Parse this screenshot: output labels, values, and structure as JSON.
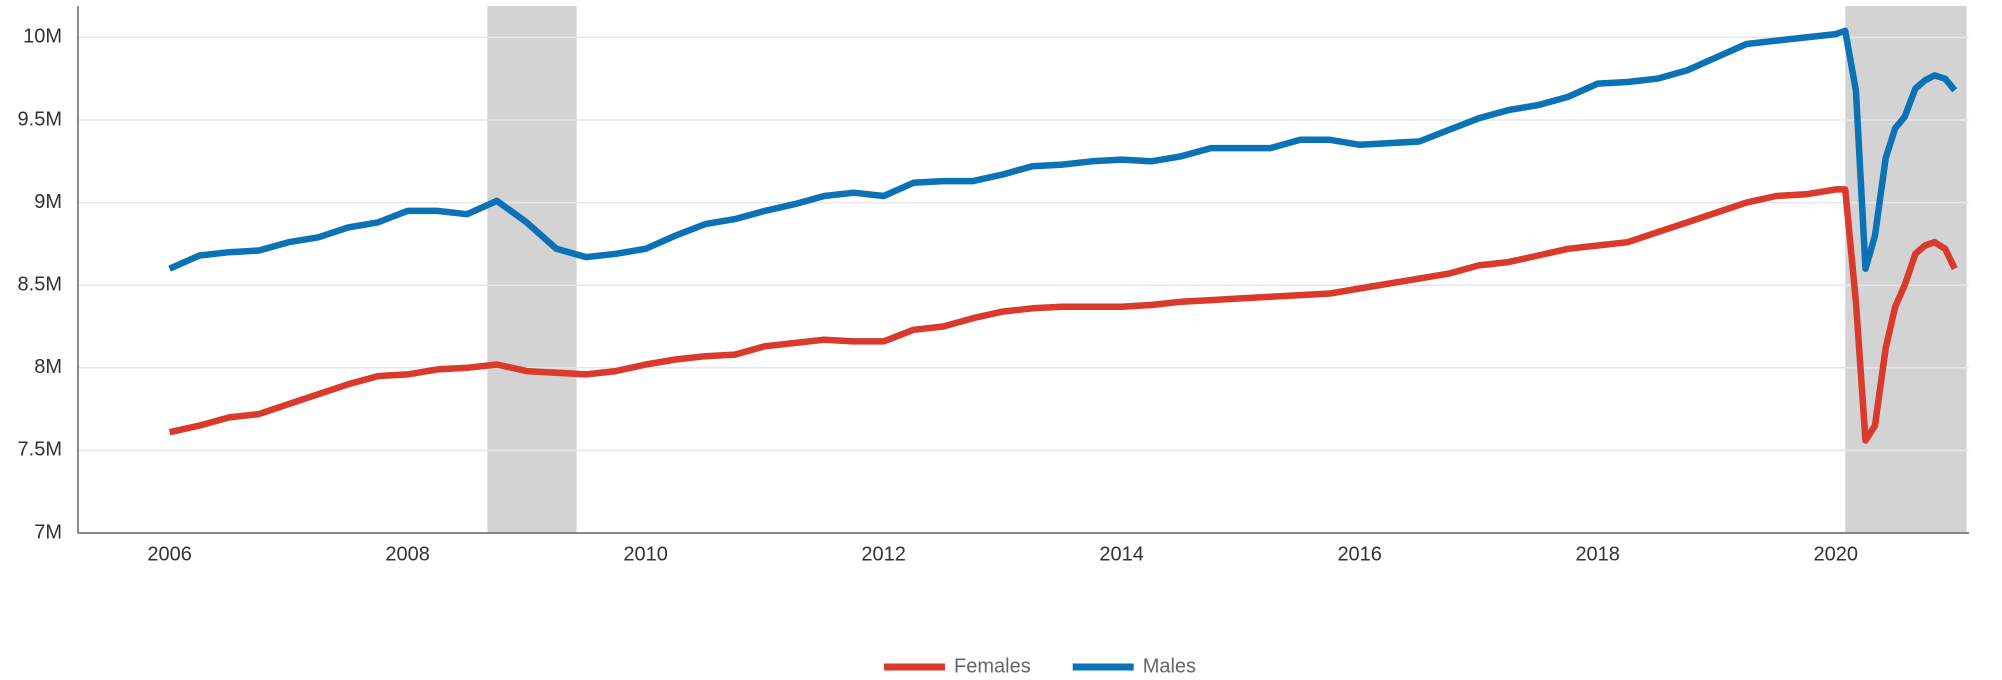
{
  "chart_data": {
    "type": "line",
    "x": [
      2006.0,
      2006.25,
      2006.5,
      2006.75,
      2007.0,
      2007.25,
      2007.5,
      2007.75,
      2008.0,
      2008.25,
      2008.5,
      2008.75,
      2009.0,
      2009.25,
      2009.5,
      2009.75,
      2010.0,
      2010.25,
      2010.5,
      2010.75,
      2011.0,
      2011.25,
      2011.5,
      2011.75,
      2012.0,
      2012.25,
      2012.5,
      2012.75,
      2013.0,
      2013.25,
      2013.5,
      2013.75,
      2014.0,
      2014.25,
      2014.5,
      2014.75,
      2015.0,
      2015.25,
      2015.5,
      2015.75,
      2016.0,
      2016.25,
      2016.5,
      2016.75,
      2017.0,
      2017.25,
      2017.5,
      2017.75,
      2018.0,
      2018.25,
      2018.5,
      2018.75,
      2019.0,
      2019.25,
      2019.5,
      2019.75,
      2020.0,
      2020.08,
      2020.17,
      2020.25,
      2020.33,
      2020.42,
      2020.5,
      2020.58,
      2020.67,
      2020.75,
      2020.83,
      2020.92,
      2021.0
    ],
    "series": [
      {
        "name": "Females",
        "color": "#d93a2b",
        "values": [
          7610000,
          7650000,
          7700000,
          7720000,
          7780000,
          7840000,
          7900000,
          7950000,
          7960000,
          7990000,
          8000000,
          8020000,
          7980000,
          7970000,
          7960000,
          7980000,
          8020000,
          8050000,
          8070000,
          8080000,
          8130000,
          8150000,
          8170000,
          8160000,
          8160000,
          8230000,
          8250000,
          8300000,
          8340000,
          8360000,
          8370000,
          8370000,
          8370000,
          8380000,
          8400000,
          8410000,
          8420000,
          8430000,
          8440000,
          8450000,
          8480000,
          8510000,
          8540000,
          8570000,
          8620000,
          8640000,
          8680000,
          8720000,
          8740000,
          8760000,
          8820000,
          8880000,
          8940000,
          9000000,
          9040000,
          9050000,
          9080000,
          9080000,
          8400000,
          7560000,
          7650000,
          8120000,
          8370000,
          8500000,
          8690000,
          8740000,
          8760000,
          8720000,
          8600000
        ]
      },
      {
        "name": "Males",
        "color": "#0a72b5",
        "values": [
          8600000,
          8680000,
          8700000,
          8710000,
          8760000,
          8790000,
          8850000,
          8880000,
          8950000,
          8950000,
          8930000,
          9010000,
          8880000,
          8720000,
          8670000,
          8690000,
          8720000,
          8800000,
          8870000,
          8900000,
          8950000,
          8990000,
          9040000,
          9060000,
          9040000,
          9120000,
          9130000,
          9130000,
          9170000,
          9220000,
          9230000,
          9250000,
          9260000,
          9250000,
          9280000,
          9330000,
          9330000,
          9330000,
          9380000,
          9380000,
          9350000,
          9360000,
          9370000,
          9440000,
          9510000,
          9560000,
          9590000,
          9640000,
          9720000,
          9730000,
          9750000,
          9800000,
          9880000,
          9960000,
          9980000,
          10000000,
          10020000,
          10040000,
          9680000,
          8600000,
          8800000,
          9270000,
          9450000,
          9520000,
          9690000,
          9740000,
          9770000,
          9750000,
          9680000
        ]
      }
    ],
    "recessions": [
      [
        2008.67,
        2009.42
      ],
      [
        2020.08,
        2021.1
      ]
    ],
    "recession_color": "#d3d3d3",
    "xlim": [
      2005.23,
      2021.12
    ],
    "xticks": [
      2006,
      2008,
      2010,
      2012,
      2014,
      2016,
      2018,
      2020
    ],
    "ylim": [
      7000000,
      10190000
    ],
    "yticks": [
      {
        "value": 7000000,
        "label": "7M"
      },
      {
        "value": 7500000,
        "label": "7.5M"
      },
      {
        "value": 8000000,
        "label": "8M"
      },
      {
        "value": 8500000,
        "label": "8.5M"
      },
      {
        "value": 9000000,
        "label": "9M"
      },
      {
        "value": 9500000,
        "label": "9.5M"
      },
      {
        "value": 10000000,
        "label": "10M"
      }
    ],
    "grid": true,
    "legend": "bottom"
  }
}
